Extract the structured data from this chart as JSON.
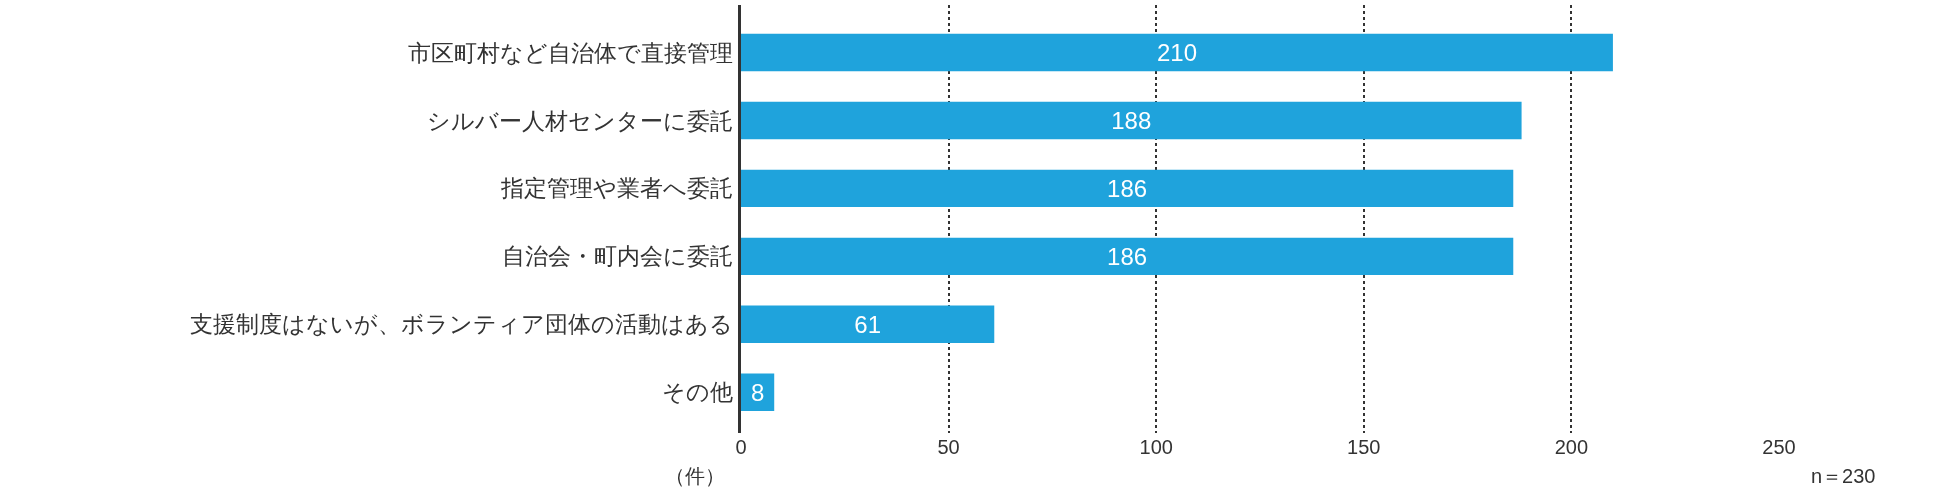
{
  "chart_data": {
    "type": "bar",
    "orientation": "horizontal",
    "categories": [
      "市区町村など自治体で直接管理",
      "シルバー人材センターに委託",
      "指定管理や業者へ委託",
      "自治会・町内会に委託",
      "支援制度はないが、ボランティア団体の活動はある",
      "その他"
    ],
    "values": [
      210,
      188,
      186,
      186,
      61,
      8
    ],
    "color": "#1fa3dc",
    "xlim": [
      0,
      250
    ],
    "xticks": [
      0,
      50,
      100,
      150,
      200,
      250
    ],
    "xlabel": "（件）",
    "grid": "x",
    "data_labels": true,
    "legend": false,
    "annotations": [
      "n＝230"
    ]
  }
}
